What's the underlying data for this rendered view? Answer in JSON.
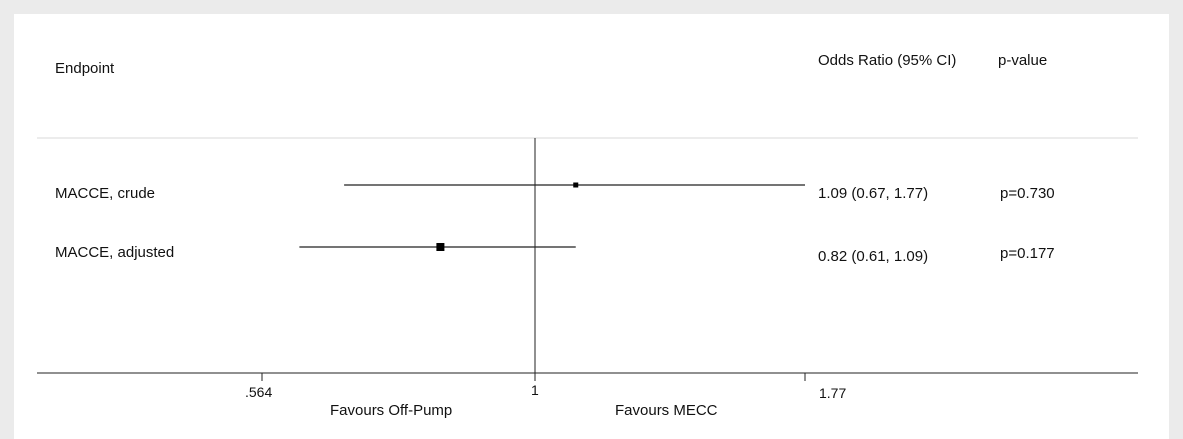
{
  "headers": {
    "endpoint": "Endpoint",
    "or_ci": "Odds Ratio (95% CI)",
    "pvalue": "p-value"
  },
  "rows": [
    {
      "label": "MACCE, crude",
      "or_text": "1.09 (0.67, 1.77)",
      "p_text": "p=0.730"
    },
    {
      "label": "MACCE, adjusted",
      "or_text": "0.82 (0.61, 1.09)",
      "p_text": "p=0.177"
    }
  ],
  "axis": {
    "ticks": [
      ".564",
      "1",
      "1.77"
    ],
    "favours_left": "Favours Off-Pump",
    "favours_right": "Favours MECC"
  },
  "chart_data": {
    "type": "forest",
    "scale": "log",
    "null_value": 1,
    "xlim": [
      0.564,
      1.77
    ],
    "xticks": [
      0.564,
      1,
      1.77
    ],
    "xticklabels": [
      ".564",
      "1",
      "1.77"
    ],
    "categories": [
      "MACCE, crude",
      "MACCE, adjusted"
    ],
    "estimates": [
      1.09,
      0.82
    ],
    "ci_lower": [
      0.67,
      0.61
    ],
    "ci_upper": [
      1.77,
      1.09
    ],
    "p_values": [
      "p=0.730",
      "p=0.177"
    ],
    "annotations": [
      "Favours Off-Pump",
      "Favours MECC"
    ]
  }
}
